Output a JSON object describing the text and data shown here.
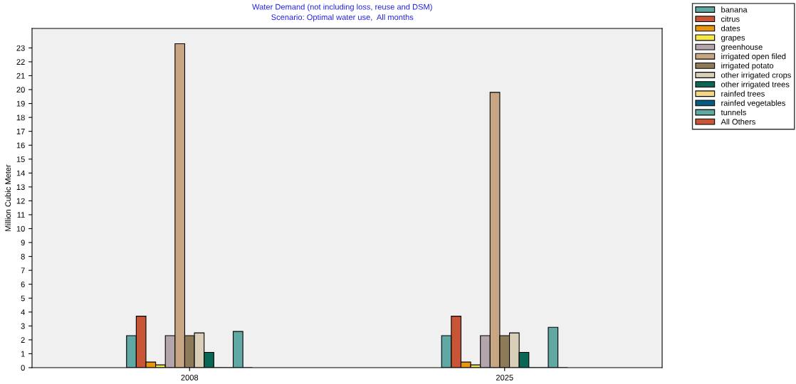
{
  "chart_data": {
    "type": "bar",
    "title": "Water Demand (not including loss, reuse and DSM)",
    "subtitle": "Scenario: Optimal water use,  All months",
    "ylabel": "Million Cubic Meter",
    "categories": [
      "2008",
      "2025"
    ],
    "series": [
      {
        "name": "banana",
        "color": "#5fa8a3",
        "values": [
          2.3,
          2.3
        ]
      },
      {
        "name": "citrus",
        "color": "#c85535",
        "values": [
          3.7,
          3.7
        ]
      },
      {
        "name": "dates",
        "color": "#e8960e",
        "values": [
          0.4,
          0.4
        ]
      },
      {
        "name": "grapes",
        "color": "#f6e84a",
        "values": [
          0.2,
          0.2
        ]
      },
      {
        "name": "greenhouse",
        "color": "#b3a5ab",
        "values": [
          2.3,
          2.3
        ]
      },
      {
        "name": "irrigated open filed",
        "color": "#c9a683",
        "values": [
          23.3,
          19.8
        ]
      },
      {
        "name": "irrigated potato",
        "color": "#8c7a58",
        "values": [
          2.3,
          2.3
        ]
      },
      {
        "name": "other irrigated crops",
        "color": "#d9cfb9",
        "values": [
          2.5,
          2.5
        ]
      },
      {
        "name": "other irrigated trees",
        "color": "#0b6655",
        "values": [
          1.1,
          1.1
        ]
      },
      {
        "name": "rainfed trees",
        "color": "#f5d883",
        "values": [
          0,
          0
        ]
      },
      {
        "name": "rainfed vegetables",
        "color": "#0a5a80",
        "values": [
          0,
          0
        ]
      },
      {
        "name": "tunnels",
        "color": "#5fa8a3",
        "values": [
          2.6,
          2.9
        ]
      },
      {
        "name": "All Others",
        "color": "#c85535",
        "values": [
          0,
          0
        ]
      }
    ],
    "ylim": [
      0,
      24.4
    ],
    "yticks": [
      0,
      1,
      2,
      3,
      4,
      5,
      6,
      7,
      8,
      9,
      10,
      11,
      12,
      13,
      14,
      15,
      16,
      17,
      18,
      19,
      20,
      21,
      22,
      23
    ],
    "grid": false,
    "legend": "top right"
  }
}
